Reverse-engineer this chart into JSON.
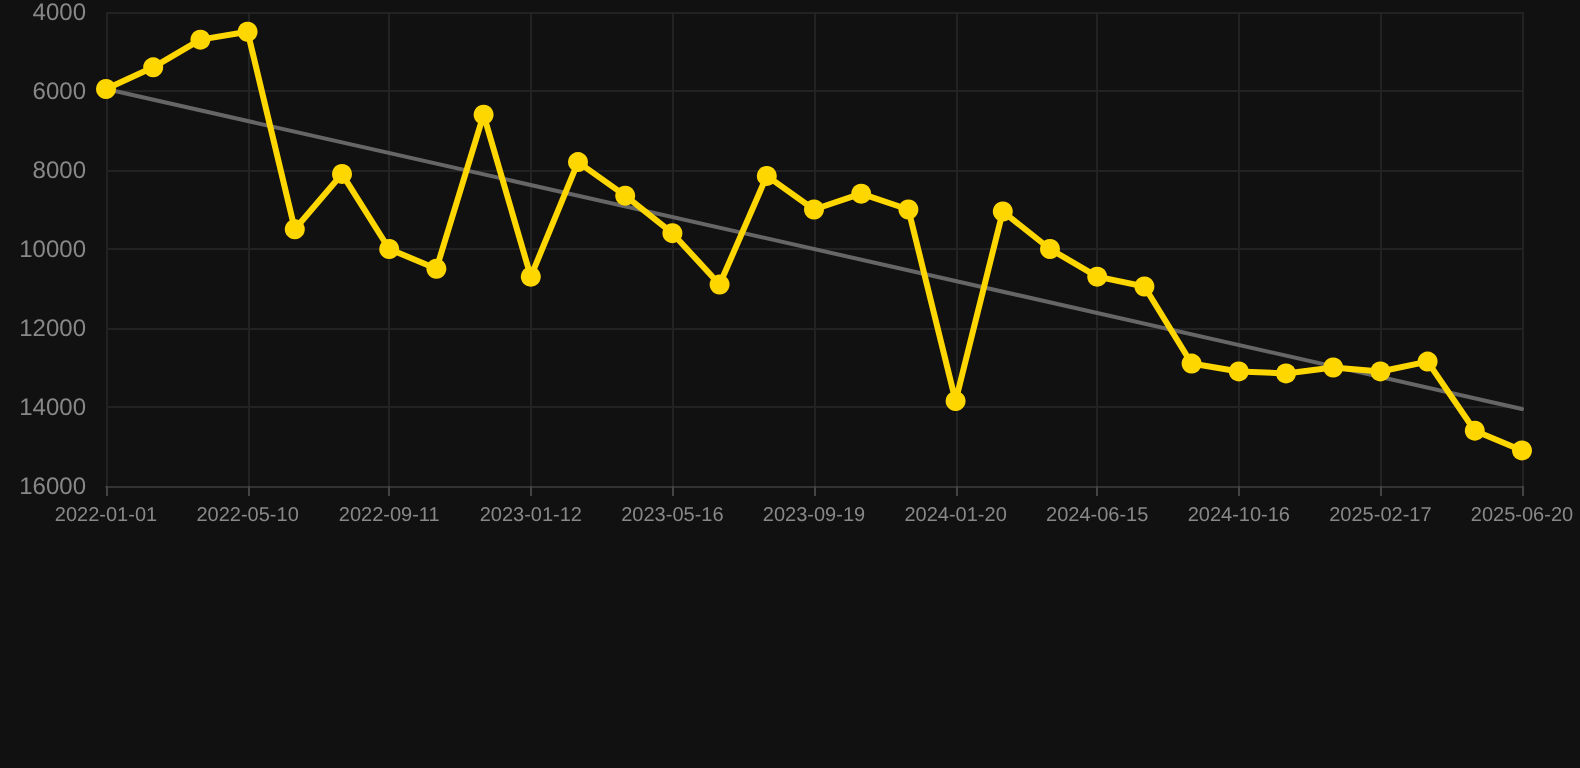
{
  "chart_data": {
    "type": "line",
    "categories": [
      "2022-01-01",
      null,
      null,
      "2022-05-10",
      null,
      null,
      "2022-09-11",
      null,
      null,
      "2023-01-12",
      null,
      null,
      "2023-05-16",
      null,
      null,
      "2023-09-19",
      null,
      null,
      "2024-01-20",
      null,
      null,
      "2024-06-15",
      null,
      null,
      "2024-10-16",
      null,
      null,
      "2025-02-17",
      null,
      null,
      "2025-06-20"
    ],
    "series": [
      {
        "color": "#ffd700",
        "marker": "circle",
        "values": [
          5950,
          5400,
          4700,
          4500,
          9500,
          8100,
          10000,
          10500,
          6600,
          10700,
          7800,
          8650,
          9600,
          10900,
          8150,
          9000,
          8600,
          9000,
          13850,
          9050,
          10000,
          10700,
          10950,
          12900,
          13100,
          13150,
          13000,
          13100,
          12850,
          14600,
          15100
        ]
      },
      {
        "type": "line",
        "color": "#666666",
        "marker": "none",
        "values": [
          5950,
          null,
          null,
          null,
          null,
          null,
          null,
          null,
          null,
          null,
          null,
          null,
          null,
          null,
          null,
          null,
          null,
          null,
          null,
          null,
          null,
          null,
          null,
          null,
          null,
          null,
          null,
          null,
          null,
          null,
          14050
        ]
      }
    ],
    "ylim": [
      16000,
      4000
    ],
    "yticks": [
      4000,
      6000,
      8000,
      10000,
      12000,
      14000,
      16000
    ],
    "grid": true,
    "line_style": "solid"
  }
}
